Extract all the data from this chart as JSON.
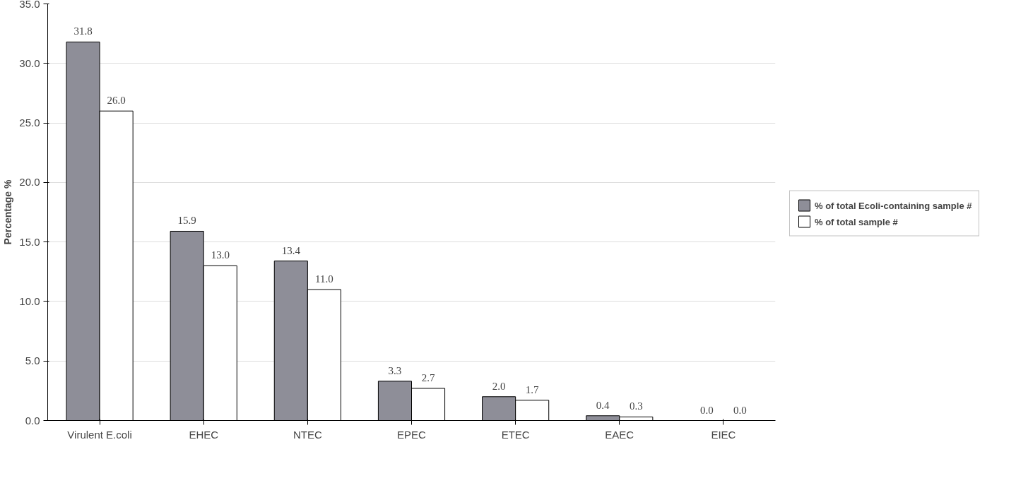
{
  "chart_data": {
    "type": "bar",
    "ylabel": "Percentage %",
    "categories": [
      "Virulent E.coli",
      "EHEC",
      "NTEC",
      "EPEC",
      "ETEC",
      "EAEC",
      "EIEC"
    ],
    "series": [
      {
        "name": "% of total Ecoli-containing sample #",
        "color": "#8e8e98",
        "values": [
          31.8,
          15.9,
          13.4,
          3.3,
          2.0,
          0.4,
          0.0
        ],
        "value_labels": [
          "31.8",
          "15.9",
          "13.4",
          "3.3",
          "2.0",
          "0.4",
          "0.0"
        ]
      },
      {
        "name": "% of total sample #",
        "color": "#ffffff",
        "values": [
          26.0,
          13.0,
          11.0,
          2.7,
          1.7,
          0.3,
          0.0
        ],
        "value_labels": [
          "26.0",
          "13.0",
          "11.0",
          "2.7",
          "1.7",
          "0.3",
          "0.0"
        ]
      }
    ],
    "ylim": [
      0,
      35
    ],
    "yticks": [
      {
        "value": 0,
        "label": "0.0"
      },
      {
        "value": 5,
        "label": "5.0"
      },
      {
        "value": 10,
        "label": "10.0"
      },
      {
        "value": 15,
        "label": "15.0"
      },
      {
        "value": 20,
        "label": "20.0"
      },
      {
        "value": 25,
        "label": "25.0"
      },
      {
        "value": 30,
        "label": "30.0"
      },
      {
        "value": 35,
        "label": "35.0"
      }
    ],
    "grid": "y",
    "legend": "right"
  }
}
